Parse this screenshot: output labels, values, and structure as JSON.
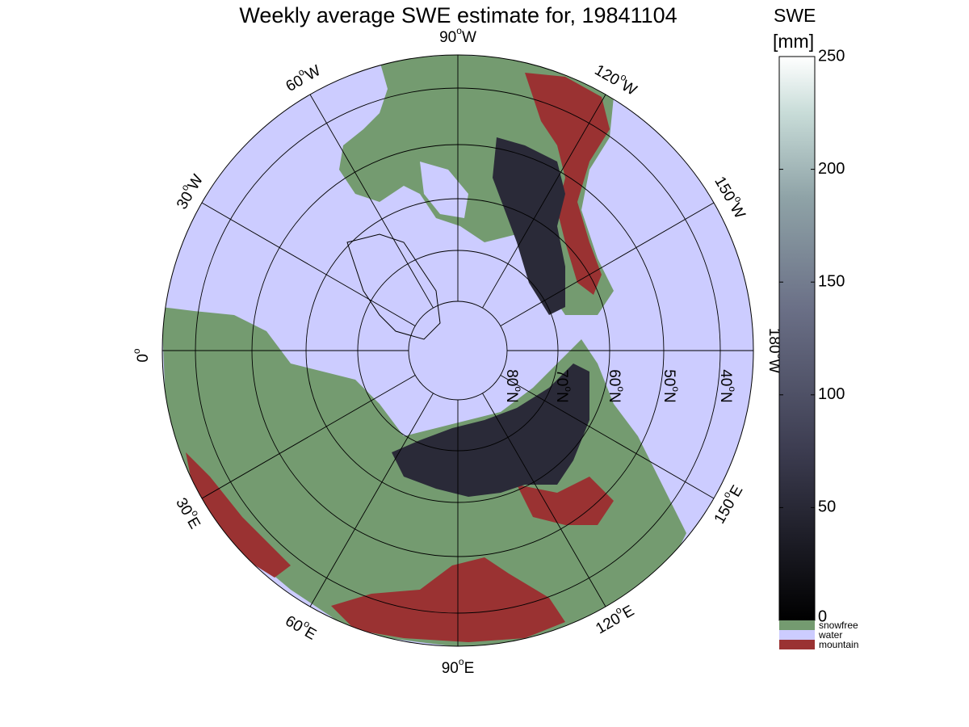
{
  "title": "Weekly average SWE estimate for, 19841104",
  "colorbar": {
    "label_line1": "SWE",
    "label_line2": "[mm]",
    "ticks": [
      0,
      50,
      100,
      150,
      200,
      250
    ],
    "range": [
      0,
      250
    ],
    "categories": [
      {
        "name": "snowfree",
        "color": "#749b70"
      },
      {
        "name": "water",
        "color": "#ccccff"
      },
      {
        "name": "mountain",
        "color": "#9a3232"
      }
    ]
  },
  "map": {
    "projection": "north polar stereographic",
    "colors": {
      "water": "#ccccff",
      "snowfree": "#749b70",
      "mountain": "#9a3232",
      "snow_deep": "#2a2a38"
    },
    "longitude_labels": [
      {
        "base": "90",
        "deg": "o",
        "dir": "W"
      },
      {
        "base": "120",
        "deg": "o",
        "dir": "W"
      },
      {
        "base": "150",
        "deg": "o",
        "dir": "W"
      },
      {
        "base": "180",
        "deg": "o",
        "dir": "W"
      },
      {
        "base": "150",
        "deg": "o",
        "dir": "E"
      },
      {
        "base": "120",
        "deg": "o",
        "dir": "E"
      },
      {
        "base": "90",
        "deg": "o",
        "dir": "E"
      },
      {
        "base": "60",
        "deg": "o",
        "dir": "E"
      },
      {
        "base": "30",
        "deg": "o",
        "dir": "E"
      },
      {
        "base": "0",
        "deg": "o",
        "dir": ""
      },
      {
        "base": "30",
        "deg": "o",
        "dir": "W"
      },
      {
        "base": "60",
        "deg": "o",
        "dir": "W"
      }
    ],
    "latitude_labels": [
      {
        "base": "80",
        "deg": "o",
        "dir": "N"
      },
      {
        "base": "70",
        "deg": "o",
        "dir": "N"
      },
      {
        "base": "60",
        "deg": "o",
        "dir": "N"
      },
      {
        "base": "50",
        "deg": "o",
        "dir": "N"
      },
      {
        "base": "40",
        "deg": "o",
        "dir": "N"
      }
    ]
  }
}
